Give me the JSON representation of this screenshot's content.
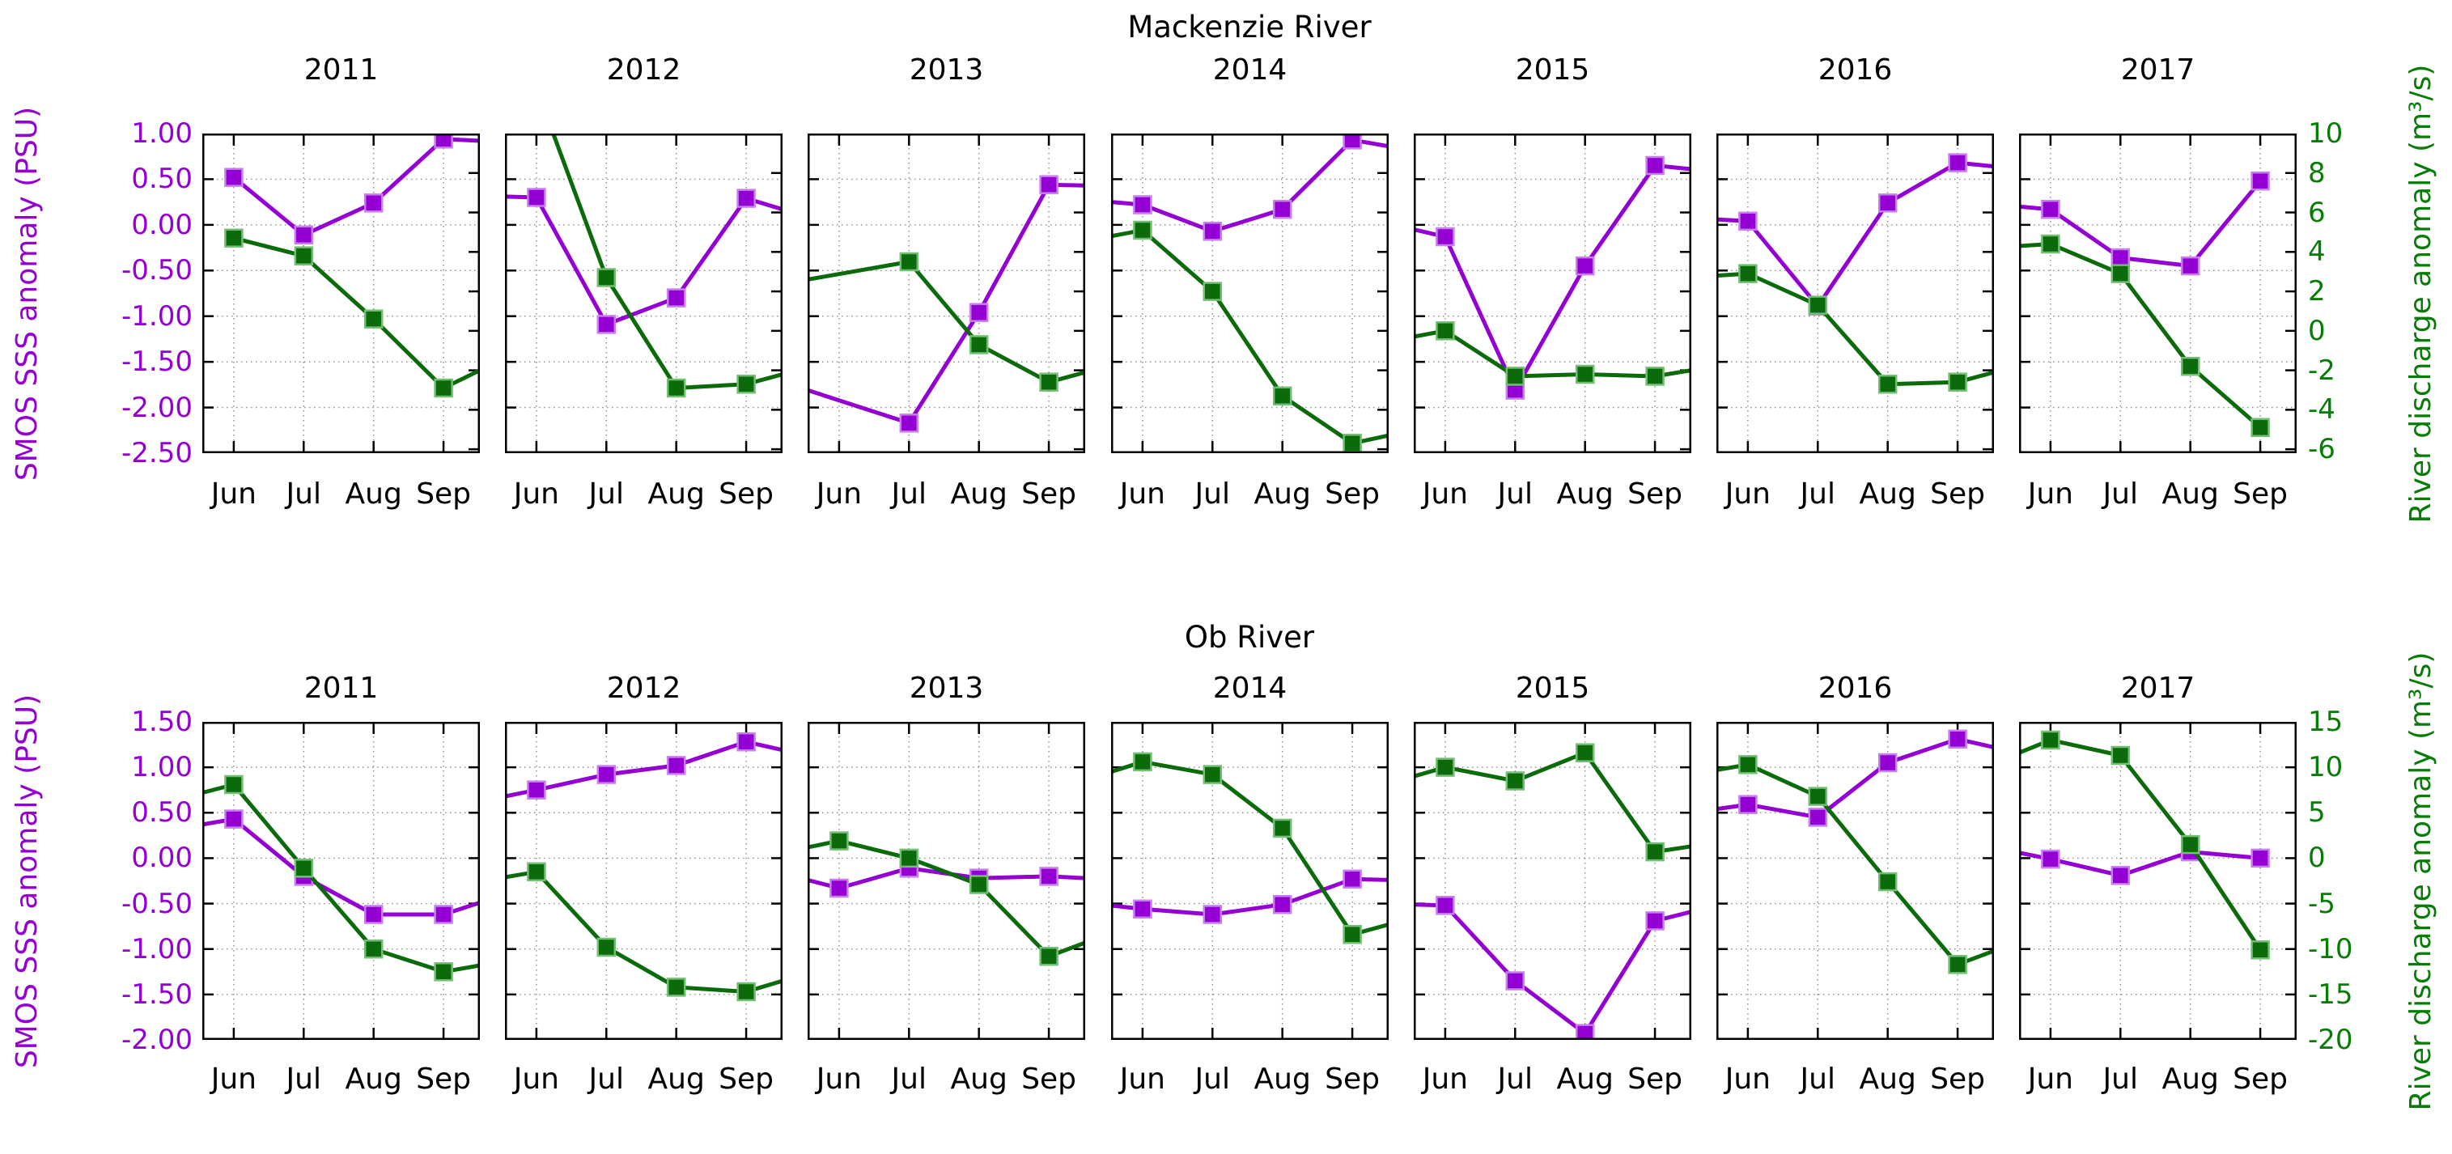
{
  "colors": {
    "sss_line": "#9400d3",
    "sss_marker_edge": "#c77ff0",
    "discharge_line": "#0b6b0b",
    "discharge_marker_edge": "#74bd74",
    "green_text": "#077d07",
    "purple_text": "#9400d3",
    "grid": "#8a8a8a",
    "axis_frame": "#000000"
  },
  "chart_data": {
    "type": "line",
    "description": "Two rows of seven yearly small-multiple panels comparing SMOS sea-surface-salinity anomaly (purple, left axis, PSU) with river discharge anomaly (green, right axis, m3/s) for Jun-Sep of 2011-2017.",
    "series_legend": [
      {
        "name": "SMOS SSS anomaly",
        "color": "#9400d3",
        "axis": "left"
      },
      {
        "name": "River discharge anomaly",
        "color": "#0b6b0b",
        "axis": "right"
      }
    ],
    "rows": [
      {
        "title": "Mackenzie River",
        "months": [
          "Jun",
          "Jul",
          "Aug",
          "Sep"
        ],
        "left_axis": {
          "label": "SMOS SSS anomaly (PSU)",
          "min": -2.5,
          "max": 1.0,
          "ticks": [
            "1.00",
            "0.50",
            "0.00",
            "-0.50",
            "-1.00",
            "-1.50",
            "-2.00",
            "-2.50"
          ]
        },
        "right_axis": {
          "label": "River discharge anomaly (m³/s)",
          "min": -6.2,
          "max": 10.0,
          "ticks": [
            "10",
            "8",
            "6",
            "4",
            "2",
            "0",
            "-2",
            "-4",
            "-6"
          ]
        },
        "panels": [
          {
            "year": "2011",
            "sss": {
              "entry": null,
              "values": [
                0.52,
                -0.11,
                0.24,
                0.94
              ],
              "exit": 0.92
            },
            "discharge": {
              "entry": null,
              "values": [
                4.7,
                3.8,
                0.6,
                -2.9
              ],
              "exit": -2.0
            }
          },
          {
            "year": "2012",
            "sss": {
              "entry": 0.31,
              "values": [
                0.3,
                -1.09,
                -0.8,
                0.29
              ],
              "exit": 0.17
            },
            "discharge": {
              "entry": null,
              "values": [
                12.3,
                2.7,
                -2.9,
                -2.7
              ],
              "exit": -2.2
            }
          },
          {
            "year": "2013",
            "sss": {
              "entry": -1.81,
              "values": [
                null,
                -2.17,
                -0.96,
                0.44
              ],
              "exit": 0.43
            },
            "discharge": {
              "entry": 2.6,
              "values": [
                null,
                3.5,
                -0.7,
                -2.6
              ],
              "exit": -2.1
            }
          },
          {
            "year": "2014",
            "sss": {
              "entry": 0.25,
              "values": [
                0.22,
                -0.07,
                0.17,
                0.93
              ],
              "exit": 0.86
            },
            "discharge": {
              "entry": 4.8,
              "values": [
                5.1,
                2.0,
                -3.3,
                -5.7
              ],
              "exit": -5.3
            }
          },
          {
            "year": "2015",
            "sss": {
              "entry": -0.05,
              "values": [
                -0.13,
                -1.81,
                -0.45,
                0.65
              ],
              "exit": 0.61
            },
            "discharge": {
              "entry": -0.3,
              "values": [
                0.0,
                -2.3,
                -2.2,
                -2.3
              ],
              "exit": -2.0
            }
          },
          {
            "year": "2016",
            "sss": {
              "entry": 0.06,
              "values": [
                0.04,
                -0.89,
                0.24,
                0.68
              ],
              "exit": 0.64
            },
            "discharge": {
              "entry": 2.8,
              "values": [
                2.9,
                1.3,
                -2.7,
                -2.6
              ],
              "exit": -2.1
            }
          },
          {
            "year": "2017",
            "sss": {
              "entry": 0.2,
              "values": [
                0.17,
                -0.36,
                -0.45,
                0.48
              ],
              "exit": null
            },
            "discharge": {
              "entry": 4.3,
              "values": [
                4.4,
                2.9,
                -1.8,
                -4.9
              ],
              "exit": null
            }
          }
        ]
      },
      {
        "title": "Ob River",
        "months": [
          "Jun",
          "Jul",
          "Aug",
          "Sep"
        ],
        "left_axis": {
          "label": "SMOS SSS anomaly (PSU)",
          "min": -2.0,
          "max": 1.5,
          "ticks": [
            "1.50",
            "1.00",
            "0.50",
            "0.00",
            "-0.50",
            "-1.00",
            "-1.50",
            "-2.00"
          ]
        },
        "right_axis": {
          "label": "River discharge anomaly (m³/s)",
          "min": -20.0,
          "max": 15.0,
          "ticks": [
            "15",
            "10",
            "5",
            "0",
            "-5",
            "-10",
            "-15",
            "-20"
          ]
        },
        "panels": [
          {
            "year": "2011",
            "sss": {
              "entry": 0.37,
              "values": [
                0.43,
                -0.2,
                -0.62,
                -0.62
              ],
              "exit": -0.49
            },
            "discharge": {
              "entry": 7.2,
              "values": [
                8.1,
                -1.1,
                -10.0,
                -12.5
              ],
              "exit": -11.8
            }
          },
          {
            "year": "2012",
            "sss": {
              "entry": 0.68,
              "values": [
                0.75,
                0.92,
                1.02,
                1.28
              ],
              "exit": 1.19
            },
            "discharge": {
              "entry": -2.1,
              "values": [
                -1.5,
                -9.8,
                -14.2,
                -14.7
              ],
              "exit": -13.5
            }
          },
          {
            "year": "2013",
            "sss": {
              "entry": -0.24,
              "values": [
                -0.33,
                -0.11,
                -0.22,
                -0.2
              ],
              "exit": -0.22
            },
            "discharge": {
              "entry": 1.2,
              "values": [
                1.9,
                0.0,
                -2.9,
                -10.8
              ],
              "exit": -9.3
            }
          },
          {
            "year": "2014",
            "sss": {
              "entry": -0.52,
              "values": [
                -0.56,
                -0.62,
                -0.51,
                -0.23
              ],
              "exit": -0.24
            },
            "discharge": {
              "entry": 9.5,
              "values": [
                10.6,
                9.2,
                3.3,
                -8.4
              ],
              "exit": -7.3
            }
          },
          {
            "year": "2015",
            "sss": {
              "entry": -0.51,
              "values": [
                -0.52,
                -1.35,
                -1.93,
                -0.69
              ],
              "exit": -0.59
            },
            "discharge": {
              "entry": 9.0,
              "values": [
                10.0,
                8.5,
                11.6,
                0.7
              ],
              "exit": 1.3
            }
          },
          {
            "year": "2016",
            "sss": {
              "entry": 0.54,
              "values": [
                0.59,
                0.45,
                1.05,
                1.31
              ],
              "exit": 1.22
            },
            "discharge": {
              "entry": 9.7,
              "values": [
                10.3,
                6.8,
                -2.6,
                -11.7
              ],
              "exit": -10.2
            }
          },
          {
            "year": "2017",
            "sss": {
              "entry": 0.06,
              "values": [
                -0.01,
                -0.19,
                0.07,
                0.0
              ],
              "exit": null
            },
            "discharge": {
              "entry": 11.6,
              "values": [
                13.0,
                11.3,
                1.5,
                -10.1
              ],
              "exit": null
            }
          }
        ]
      }
    ]
  }
}
